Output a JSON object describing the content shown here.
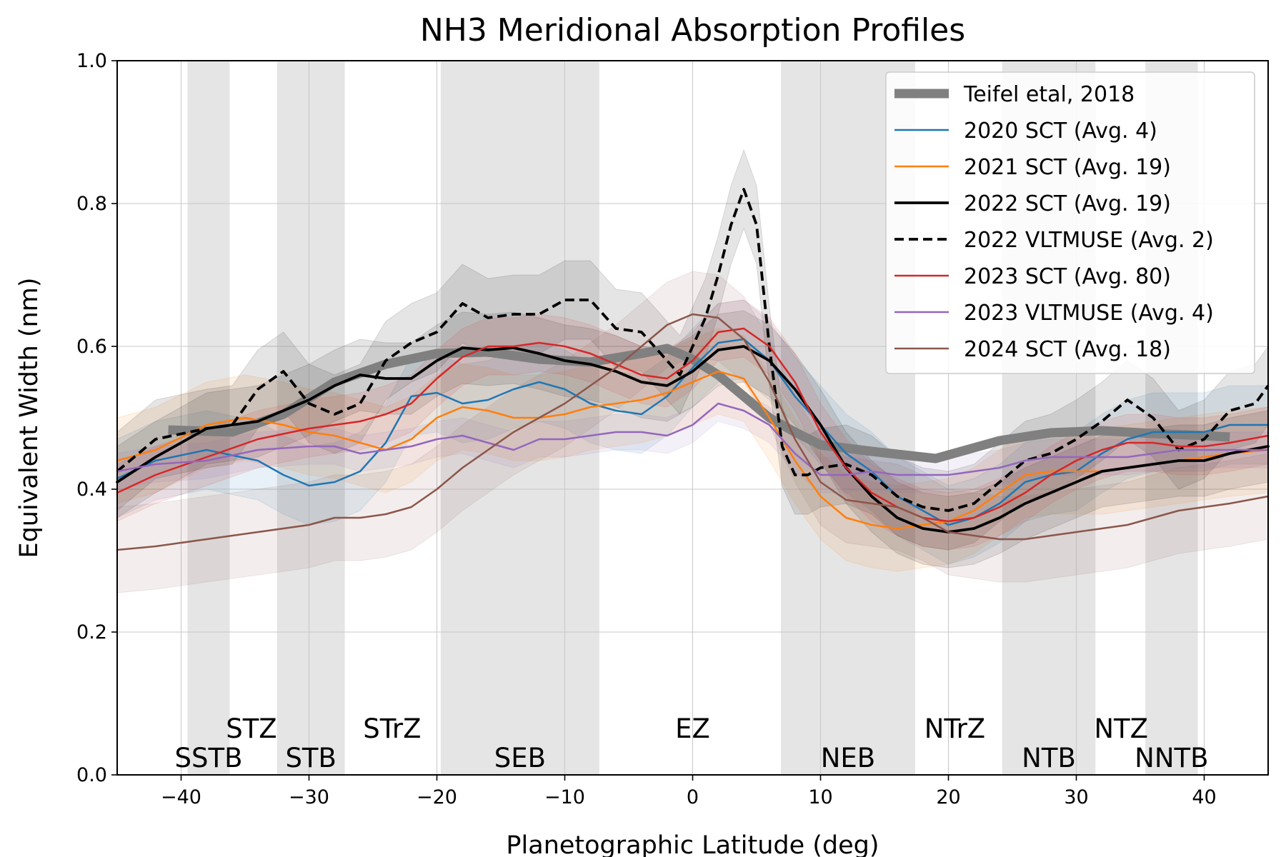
{
  "chart_data": {
    "type": "line",
    "title": "NH3 Meridional Absorption Profiles",
    "xlabel": "Planetographic Latitude (deg)",
    "ylabel": "Equivalent Width (nm)",
    "xlim": [
      -45,
      45
    ],
    "ylim": [
      0.0,
      1.0
    ],
    "xticks": [
      -40,
      -30,
      -20,
      -10,
      0,
      10,
      20,
      30,
      40
    ],
    "xtick_labels": [
      "−40",
      "−30",
      "−20",
      "−10",
      "0",
      "10",
      "20",
      "30",
      "40"
    ],
    "yticks": [
      0.0,
      0.2,
      0.4,
      0.6,
      0.8,
      1.0
    ],
    "ytick_labels": [
      "0.0",
      "0.2",
      "0.4",
      "0.6",
      "0.8",
      "1.0"
    ],
    "grid": true,
    "legend_position": "top-right",
    "belts": [
      {
        "label": "SSTB",
        "x0": -39.5,
        "x1": -36.2
      },
      {
        "label": "STB",
        "x0": -32.5,
        "x1": -27.2
      },
      {
        "label": "SEB",
        "x0": -19.7,
        "x1": -7.3
      },
      {
        "label": "NEB",
        "x0": 6.9,
        "x1": 17.4
      },
      {
        "label": "NTB",
        "x0": 24.2,
        "x1": 31.5
      },
      {
        "label": "NNTB",
        "x0": 35.4,
        "x1": 39.5
      }
    ],
    "zones": [
      {
        "label": "STZ",
        "x": -34.5
      },
      {
        "label": "STrZ",
        "x": -23.5
      },
      {
        "label": "EZ",
        "x": 0
      },
      {
        "label": "NTrZ",
        "x": 20.5
      },
      {
        "label": "NTZ",
        "x": 33.5
      }
    ],
    "series": [
      {
        "name": "Teifel etal, 2018",
        "color": "#808080",
        "style": "thick",
        "x": [
          -41,
          -36,
          -32,
          -28,
          -24,
          -20,
          -16,
          -12,
          -8,
          -4,
          -2,
          0,
          2,
          4,
          6,
          8,
          10,
          14,
          19,
          24,
          28,
          32,
          36,
          40,
          42
        ],
        "y": [
          0.483,
          0.48,
          0.505,
          0.55,
          0.575,
          0.59,
          0.592,
          0.582,
          0.578,
          0.59,
          0.597,
          0.582,
          0.56,
          0.53,
          0.5,
          0.48,
          0.462,
          0.453,
          0.443,
          0.468,
          0.479,
          0.482,
          0.478,
          0.475,
          0.473
        ]
      },
      {
        "name": "2020 SCT (Avg. 4)",
        "color": "#1f77b4",
        "style": "solid",
        "band": 0.055,
        "x": [
          -45,
          -42,
          -38,
          -34,
          -32,
          -30,
          -28,
          -26,
          -24,
          -22,
          -20,
          -18,
          -16,
          -14,
          -12,
          -10,
          -8,
          -6,
          -4,
          -2,
          0,
          2,
          4,
          6,
          8,
          10,
          12,
          14,
          16,
          18,
          20,
          22,
          24,
          26,
          28,
          30,
          32,
          34,
          36,
          38,
          40,
          42,
          45
        ],
        "y": [
          0.415,
          0.44,
          0.455,
          0.44,
          0.42,
          0.405,
          0.41,
          0.425,
          0.465,
          0.53,
          0.535,
          0.52,
          0.525,
          0.54,
          0.55,
          0.54,
          0.52,
          0.51,
          0.505,
          0.53,
          0.57,
          0.605,
          0.61,
          0.58,
          0.53,
          0.49,
          0.45,
          0.425,
          0.39,
          0.37,
          0.35,
          0.36,
          0.38,
          0.41,
          0.42,
          0.425,
          0.45,
          0.47,
          0.48,
          0.48,
          0.48,
          0.49,
          0.49
        ]
      },
      {
        "name": "2021 SCT (Avg. 19)",
        "color": "#ff7f0e",
        "style": "solid",
        "band": 0.06,
        "x": [
          -45,
          -42,
          -38,
          -35,
          -32,
          -30,
          -28,
          -26,
          -24,
          -22,
          -20,
          -18,
          -16,
          -14,
          -12,
          -10,
          -8,
          -6,
          -4,
          -2,
          0,
          2,
          4,
          6,
          8,
          10,
          12,
          14,
          16,
          18,
          20,
          22,
          24,
          26,
          28,
          30,
          32,
          34,
          36,
          38,
          40,
          42,
          45
        ],
        "y": [
          0.44,
          0.455,
          0.49,
          0.5,
          0.49,
          0.48,
          0.475,
          0.465,
          0.455,
          0.47,
          0.5,
          0.515,
          0.51,
          0.5,
          0.5,
          0.505,
          0.515,
          0.52,
          0.525,
          0.535,
          0.55,
          0.565,
          0.555,
          0.5,
          0.44,
          0.39,
          0.36,
          0.35,
          0.345,
          0.35,
          0.355,
          0.37,
          0.395,
          0.42,
          0.425,
          0.425,
          0.425,
          0.43,
          0.435,
          0.44,
          0.445,
          0.45,
          0.455
        ]
      },
      {
        "name": "2022 SCT (Avg. 19)",
        "color": "#000000",
        "style": "thick-solid",
        "band": 0.05,
        "x": [
          -45,
          -42,
          -38,
          -34,
          -32,
          -30,
          -28,
          -26,
          -24,
          -22,
          -20,
          -18,
          -16,
          -14,
          -12,
          -10,
          -8,
          -6,
          -4,
          -2,
          0,
          2,
          4,
          6,
          8,
          10,
          12,
          14,
          16,
          18,
          20,
          22,
          24,
          26,
          28,
          30,
          32,
          34,
          36,
          38,
          40,
          42,
          45
        ],
        "y": [
          0.41,
          0.445,
          0.485,
          0.495,
          0.51,
          0.525,
          0.545,
          0.56,
          0.555,
          0.555,
          0.58,
          0.598,
          0.595,
          0.598,
          0.59,
          0.58,
          0.575,
          0.565,
          0.55,
          0.545,
          0.565,
          0.595,
          0.6,
          0.58,
          0.54,
          0.49,
          0.43,
          0.39,
          0.36,
          0.345,
          0.34,
          0.345,
          0.36,
          0.38,
          0.395,
          0.41,
          0.425,
          0.43,
          0.435,
          0.44,
          0.44,
          0.45,
          0.46
        ]
      },
      {
        "name": "2022 VLTMUSE (Avg. 2)",
        "color": "#000000",
        "style": "dashed",
        "band": 0.055,
        "x": [
          -45,
          -42,
          -38,
          -36,
          -34,
          -32,
          -30,
          -28,
          -26,
          -24,
          -22,
          -20,
          -18,
          -16,
          -14,
          -12,
          -10,
          -8,
          -6,
          -4,
          -2,
          -1,
          0,
          1,
          2,
          3,
          4,
          5,
          6,
          7,
          8,
          9,
          10,
          12,
          14,
          16,
          18,
          20,
          22,
          24,
          26,
          28,
          30,
          32,
          34,
          36,
          38,
          40,
          42,
          44,
          45
        ],
        "y": [
          0.425,
          0.47,
          0.485,
          0.49,
          0.54,
          0.565,
          0.52,
          0.505,
          0.52,
          0.58,
          0.605,
          0.62,
          0.66,
          0.64,
          0.645,
          0.645,
          0.665,
          0.665,
          0.625,
          0.62,
          0.58,
          0.56,
          0.6,
          0.64,
          0.7,
          0.77,
          0.82,
          0.77,
          0.6,
          0.46,
          0.42,
          0.42,
          0.43,
          0.435,
          0.42,
          0.39,
          0.375,
          0.37,
          0.38,
          0.41,
          0.44,
          0.45,
          0.47,
          0.495,
          0.525,
          0.5,
          0.455,
          0.47,
          0.51,
          0.52,
          0.545
        ]
      },
      {
        "name": "2023 SCT (Avg. 80)",
        "color": "#d62728",
        "style": "solid",
        "band": 0.04,
        "x": [
          -45,
          -42,
          -38,
          -34,
          -30,
          -26,
          -24,
          -22,
          -20,
          -18,
          -16,
          -14,
          -12,
          -10,
          -8,
          -6,
          -4,
          -2,
          0,
          2,
          4,
          6,
          8,
          10,
          12,
          14,
          16,
          18,
          20,
          22,
          24,
          26,
          28,
          30,
          32,
          34,
          36,
          38,
          40,
          42,
          45
        ],
        "y": [
          0.395,
          0.42,
          0.445,
          0.47,
          0.485,
          0.495,
          0.505,
          0.52,
          0.555,
          0.585,
          0.6,
          0.6,
          0.605,
          0.6,
          0.59,
          0.575,
          0.56,
          0.555,
          0.58,
          0.62,
          0.625,
          0.6,
          0.55,
          0.48,
          0.43,
          0.395,
          0.375,
          0.36,
          0.355,
          0.36,
          0.375,
          0.395,
          0.42,
          0.44,
          0.455,
          0.465,
          0.465,
          0.46,
          0.46,
          0.465,
          0.475
        ]
      },
      {
        "name": "2023 VLTMUSE (Avg. 4)",
        "color": "#9467bd",
        "style": "solid",
        "band": 0.025,
        "x": [
          -45,
          -42,
          -38,
          -34,
          -30,
          -28,
          -26,
          -24,
          -22,
          -20,
          -18,
          -16,
          -14,
          -12,
          -10,
          -8,
          -6,
          -4,
          -2,
          0,
          2,
          4,
          6,
          8,
          10,
          12,
          14,
          16,
          18,
          20,
          22,
          24,
          26,
          28,
          30,
          32,
          34,
          36,
          38,
          40,
          42,
          45
        ],
        "y": [
          0.425,
          0.435,
          0.44,
          0.455,
          0.46,
          0.46,
          0.45,
          0.455,
          0.46,
          0.47,
          0.475,
          0.465,
          0.455,
          0.47,
          0.47,
          0.475,
          0.48,
          0.48,
          0.475,
          0.49,
          0.52,
          0.51,
          0.49,
          0.45,
          0.42,
          0.42,
          0.425,
          0.42,
          0.42,
          0.42,
          0.425,
          0.43,
          0.44,
          0.445,
          0.445,
          0.445,
          0.445,
          0.45,
          0.455,
          0.455,
          0.455,
          0.455
        ]
      },
      {
        "name": "2024 SCT (Avg. 18)",
        "color": "#8c564b",
        "style": "solid",
        "band": 0.06,
        "x": [
          -45,
          -42,
          -38,
          -34,
          -30,
          -28,
          -26,
          -24,
          -22,
          -20,
          -18,
          -16,
          -14,
          -12,
          -10,
          -8,
          -6,
          -4,
          -2,
          0,
          2,
          4,
          6,
          8,
          10,
          12,
          14,
          16,
          18,
          20,
          22,
          24,
          26,
          28,
          30,
          32,
          34,
          36,
          38,
          40,
          42,
          45
        ],
        "y": [
          0.315,
          0.32,
          0.33,
          0.34,
          0.35,
          0.36,
          0.36,
          0.365,
          0.375,
          0.4,
          0.43,
          0.455,
          0.48,
          0.5,
          0.52,
          0.545,
          0.57,
          0.6,
          0.63,
          0.645,
          0.64,
          0.61,
          0.55,
          0.47,
          0.41,
          0.385,
          0.38,
          0.375,
          0.36,
          0.34,
          0.335,
          0.33,
          0.33,
          0.335,
          0.34,
          0.345,
          0.35,
          0.36,
          0.37,
          0.375,
          0.38,
          0.39
        ]
      }
    ]
  }
}
